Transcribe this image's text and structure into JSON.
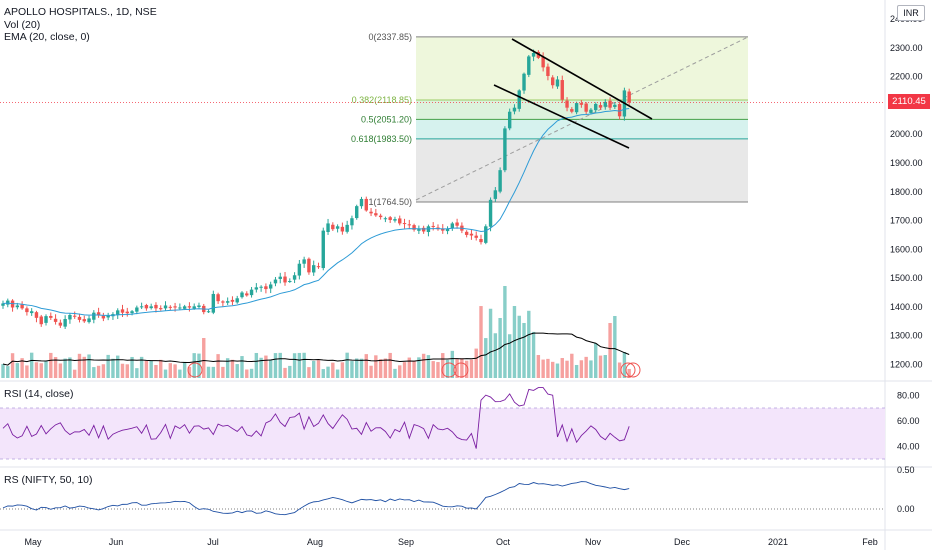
{
  "header": {
    "symbol_line": "APOLLO HOSPITALS., 1D, NSE",
    "vol_line": "Vol (20)",
    "ema_line": "EMA (20, close, 0)",
    "currency_button": "INR",
    "last_price": "2110.45"
  },
  "rsi_panel": {
    "label": "RSI (14, close)"
  },
  "rs_panel": {
    "label": "RS (NIFTY, 50, 10)"
  },
  "colors": {
    "up": "#26a69a",
    "down": "#ef5350",
    "ema": "#2d9bd6",
    "vol_ma": "#000000",
    "rsi": "#7b1fa2",
    "rsi_band": "#f3e5fb",
    "rs": "#1e4fa3",
    "fib_green": "#4caf50"
  },
  "chart_data": [
    {
      "type": "candlestick",
      "title": "APOLLO HOSPITALS., 1D, NSE",
      "x_ticks": [
        "May",
        "Jun",
        "Jul",
        "Aug",
        "Sep",
        "Oct",
        "Nov",
        "Dec",
        "2021",
        "Feb"
      ],
      "y_ticks": [
        "2400.00",
        "2300.00",
        "2200.00",
        "2100.00",
        "2000.00",
        "1900.00",
        "1800.00",
        "1700.00",
        "1600.00",
        "1500.00",
        "1400.00",
        "1300.00",
        "1200.00"
      ],
      "ylim": [
        1160,
        2410
      ],
      "last_price": 2110.45,
      "close_approx": [
        1412,
        1422,
        1398,
        1405,
        1395,
        1382,
        1385,
        1362,
        1340,
        1368,
        1362,
        1348,
        1335,
        1358,
        1372,
        1368,
        1355,
        1350,
        1360,
        1380,
        1370,
        1360,
        1370,
        1375,
        1388,
        1380,
        1378,
        1385,
        1398,
        1402,
        1395,
        1402,
        1395,
        1392,
        1405,
        1400,
        1398,
        1398,
        1402,
        1398,
        1402,
        1405,
        1382,
        1385,
        1445,
        1420,
        1415,
        1420,
        1418,
        1430,
        1450,
        1440,
        1460,
        1468,
        1470,
        1462,
        1478,
        1495,
        1505,
        1485,
        1490,
        1510,
        1550,
        1565,
        1520,
        1545,
        1538,
        1665,
        1690,
        1670,
        1680,
        1662,
        1685,
        1708,
        1750,
        1775,
        1735,
        1725,
        1718,
        1712,
        1708,
        1702,
        1705,
        1690,
        1688,
        1685,
        1668,
        1670,
        1662,
        1680,
        1678,
        1670,
        1665,
        1672,
        1690,
        1682,
        1665,
        1650,
        1648,
        1640,
        1625,
        1680,
        1772,
        1805,
        1875,
        2020,
        2078,
        2092,
        2152,
        2210,
        2270,
        2282,
        2265,
        2232,
        2202,
        2170,
        2190,
        2120,
        2092,
        2078,
        2108,
        2102,
        2078,
        2085,
        2105,
        2092,
        2112,
        2092,
        2102,
        2062,
        2152,
        2110
      ],
      "fibonacci": [
        {
          "ratio": "0",
          "price": 2337.85,
          "label": "0(2337.85)"
        },
        {
          "ratio": "0.382",
          "price": 2118.85,
          "label": "0.382(2118.85)"
        },
        {
          "ratio": "0.5",
          "price": 2051.2,
          "label": "0.5(2051.20)"
        },
        {
          "ratio": "0.618",
          "price": 1983.5,
          "label": "0.618(1983.50)"
        },
        {
          "ratio": "1",
          "price": 1764.5,
          "label": "1(1764.50)"
        }
      ]
    },
    {
      "type": "line",
      "title": "RSI (14, close)",
      "y_ticks": [
        "80.00",
        "60.00",
        "40.00"
      ],
      "ylim": [
        30,
        90
      ],
      "band": [
        30,
        70
      ]
    },
    {
      "type": "line",
      "title": "RS (NIFTY, 50, 10)",
      "y_ticks": [
        "0.50",
        "0.00"
      ],
      "ylim": [
        -0.2,
        0.7
      ]
    }
  ]
}
